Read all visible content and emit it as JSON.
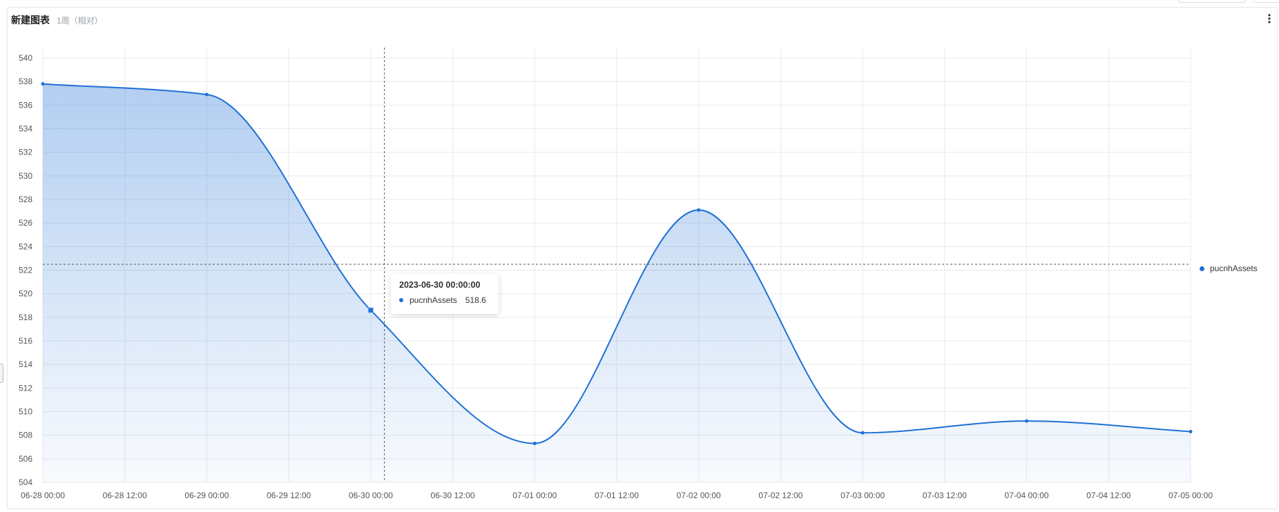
{
  "panel": {
    "title": "新建图表",
    "subtitle": "1周（相对）"
  },
  "tooltip": {
    "title": "2023-06-30 00:00:00",
    "series_name": "pucnhAssets",
    "value": "518.6"
  },
  "colors": {
    "series": "#1e6fd6",
    "grid": "#e7e9ec"
  },
  "chart_data": {
    "type": "area",
    "title": "",
    "xlabel": "",
    "ylabel": "",
    "ylim": [
      504,
      540
    ],
    "y_ticks": [
      504,
      506,
      508,
      510,
      512,
      514,
      516,
      518,
      520,
      522,
      524,
      526,
      528,
      530,
      532,
      534,
      536,
      538,
      540
    ],
    "x_ticks": [
      "06-28 00:00",
      "06-28 12:00",
      "06-29 00:00",
      "06-29 12:00",
      "06-30 00:00",
      "06-30 12:00",
      "07-01 00:00",
      "07-01 12:00",
      "07-02 00:00",
      "07-02 12:00",
      "07-03 00:00",
      "07-03 12:00",
      "07-04 00:00",
      "07-04 12:00",
      "07-05 00:00"
    ],
    "legend": "right",
    "grid": true,
    "series": [
      {
        "name": "pucnhAssets",
        "x": [
          "2023-06-28 00:00",
          "2023-06-29 00:00",
          "2023-06-30 00:00",
          "2023-07-01 00:00",
          "2023-07-02 00:00",
          "2023-07-03 00:00",
          "2023-07-04 00:00",
          "2023-07-05 00:00"
        ],
        "values": [
          537.8,
          536.9,
          518.6,
          507.3,
          527.1,
          508.2,
          509.2,
          508.3
        ]
      }
    ],
    "highlight": {
      "x": "2023-06-30 00:00",
      "value": 518.6
    },
    "crosshair": {
      "x": "2023-06-30 02:00",
      "y": 522.5
    }
  }
}
